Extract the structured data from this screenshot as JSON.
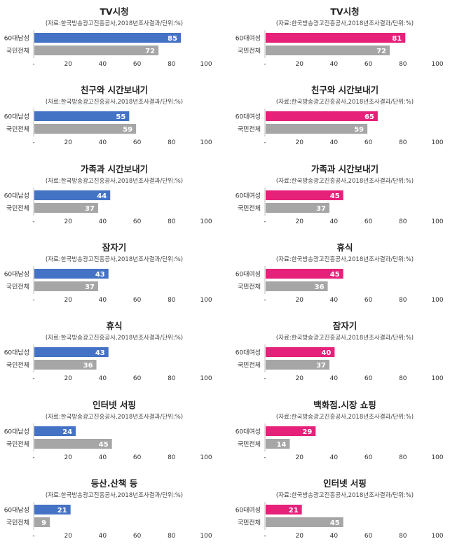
{
  "colors": {
    "male": "#4472C4",
    "female": "#E6217A",
    "national": "#A6A6A6",
    "axis": "#BFBFBF"
  },
  "chart_data": [
    {
      "type": "bar",
      "title": "TV시청",
      "subtitle": "(자료:한국방송광고진흥공사,2018년조사결과/단위:%)",
      "categories": [
        "60대남성",
        "국민전체"
      ],
      "values": [
        85,
        72
      ],
      "xticks": [
        "-",
        "20",
        "40",
        "60",
        "80",
        "100"
      ],
      "xlim": [
        0,
        100
      ]
    },
    {
      "type": "bar",
      "title": "TV시청",
      "subtitle": "(자료:한국방송광고진흥공사,2018년조사결과/단위:%)",
      "categories": [
        "60대여성",
        "국민전체"
      ],
      "values": [
        81,
        72
      ],
      "xticks": [
        "-",
        "20",
        "40",
        "60",
        "80",
        "100"
      ],
      "xlim": [
        0,
        100
      ]
    },
    {
      "type": "bar",
      "title": "친구와 시간보내기",
      "subtitle": "(자료:한국방송광고진흥공사,2018년조사결과/단위:%)",
      "categories": [
        "60대남성",
        "국민전체"
      ],
      "values": [
        55,
        59
      ],
      "xticks": [
        "-",
        "20",
        "40",
        "60",
        "80",
        "100"
      ],
      "xlim": [
        0,
        100
      ]
    },
    {
      "type": "bar",
      "title": "친구와 시간보내기",
      "subtitle": "(자료:한국방송광고진흥공사,2018년조사결과/단위:%)",
      "categories": [
        "60대여성",
        "국민전체"
      ],
      "values": [
        65,
        59
      ],
      "xticks": [
        "-",
        "20",
        "40",
        "60",
        "80",
        "100"
      ],
      "xlim": [
        0,
        100
      ]
    },
    {
      "type": "bar",
      "title": "가족과 시간보내기",
      "subtitle": "(자료:한국방송광고진흥공사,2018년조사결과/단위:%)",
      "categories": [
        "60대남성",
        "국민전체"
      ],
      "values": [
        44,
        37
      ],
      "xticks": [
        "-",
        "20",
        "40",
        "60",
        "80",
        "100"
      ],
      "xlim": [
        0,
        100
      ]
    },
    {
      "type": "bar",
      "title": "가족과 시간보내기",
      "subtitle": "(자료:한국방송광고진흥공사,2018년조사결과/단위:%)",
      "categories": [
        "60대여성",
        "국민전체"
      ],
      "values": [
        45,
        37
      ],
      "xticks": [
        "-",
        "20",
        "40",
        "60",
        "80",
        "100"
      ],
      "xlim": [
        0,
        100
      ]
    },
    {
      "type": "bar",
      "title": "잠자기",
      "subtitle": "(자료:한국방송광고진흥공사,2018년조사결과/단위:%)",
      "categories": [
        "60대남성",
        "국민전체"
      ],
      "values": [
        43,
        37
      ],
      "xticks": [
        "-",
        "20",
        "40",
        "60",
        "80",
        "100"
      ],
      "xlim": [
        0,
        100
      ]
    },
    {
      "type": "bar",
      "title": "휴식",
      "subtitle": "(자료:한국방송광고진흥공사,2018년조사결과/단위:%)",
      "categories": [
        "60대여성",
        "국민전체"
      ],
      "values": [
        45,
        36
      ],
      "xticks": [
        "-",
        "20",
        "40",
        "60",
        "80",
        "100"
      ],
      "xlim": [
        0,
        100
      ]
    },
    {
      "type": "bar",
      "title": "휴식",
      "subtitle": "(자료:한국방송광고진흥공사,2018년조사결과/단위:%)",
      "categories": [
        "60대남성",
        "국민전체"
      ],
      "values": [
        43,
        36
      ],
      "xticks": [
        "-",
        "20",
        "40",
        "60",
        "80",
        "100"
      ],
      "xlim": [
        0,
        100
      ]
    },
    {
      "type": "bar",
      "title": "잠자기",
      "subtitle": "(자료:한국방송광고진흥공사,2018년조사결과/단위:%)",
      "categories": [
        "60대여성",
        "국민전체"
      ],
      "values": [
        40,
        37
      ],
      "xticks": [
        "-",
        "20",
        "40",
        "60",
        "80",
        "100"
      ],
      "xlim": [
        0,
        100
      ]
    },
    {
      "type": "bar",
      "title": "인터넷 서핑",
      "subtitle": "(자료:한국방송광고진흥공사,2018년조사결과/단위:%)",
      "categories": [
        "60대남성",
        "국민전체"
      ],
      "values": [
        24,
        45
      ],
      "xticks": [
        "-",
        "20",
        "40",
        "60",
        "80",
        "100"
      ],
      "xlim": [
        0,
        100
      ]
    },
    {
      "type": "bar",
      "title": "백화점.시장 쇼핑",
      "subtitle": "(자료:한국방송광고진흥공사,2018년조사결과/단위:%)",
      "categories": [
        "60대여성",
        "국민전체"
      ],
      "values": [
        29,
        14
      ],
      "xticks": [
        "-",
        "20",
        "40",
        "60",
        "80",
        "100"
      ],
      "xlim": [
        0,
        100
      ]
    },
    {
      "type": "bar",
      "title": "등산.산책 등",
      "subtitle": "(자료:한국방송광고진흥공사,2018년조사결과/단위:%)",
      "categories": [
        "60대남성",
        "국민전체"
      ],
      "values": [
        21,
        9
      ],
      "xticks": [
        "-",
        "20",
        "40",
        "60",
        "80",
        "100"
      ],
      "xlim": [
        0,
        100
      ]
    },
    {
      "type": "bar",
      "title": "인터넷 서핑",
      "subtitle": "(자료:한국방송광고진흥공사,2018년조사결과/단위:%)",
      "categories": [
        "60대여성",
        "국민전체"
      ],
      "values": [
        21,
        45
      ],
      "xticks": [
        "-",
        "20",
        "40",
        "60",
        "80",
        "100"
      ],
      "xlim": [
        0,
        100
      ]
    }
  ]
}
